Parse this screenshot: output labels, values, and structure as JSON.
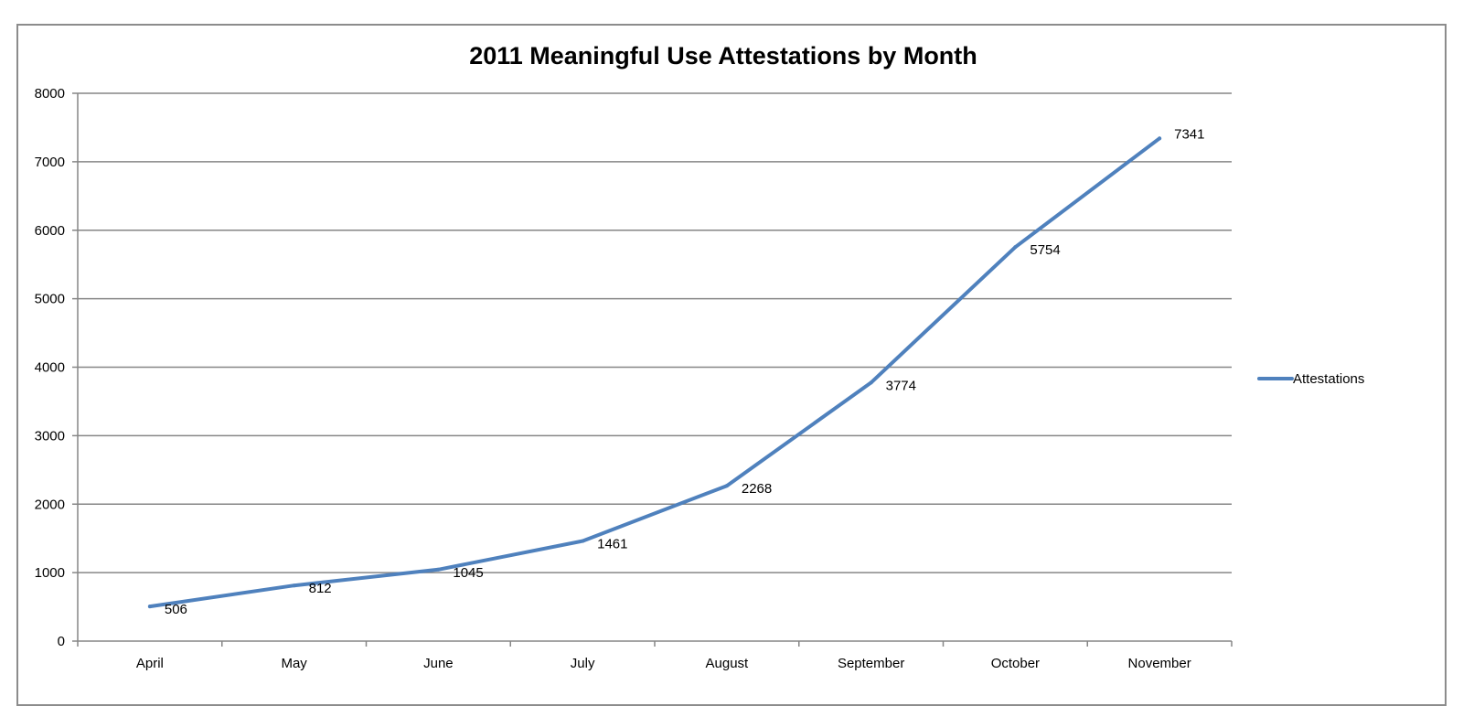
{
  "chart_data": {
    "type": "line",
    "title": "2011 Meaningful Use Attestations by Month",
    "xlabel": "",
    "ylabel": "",
    "categories": [
      "April",
      "May",
      "June",
      "July",
      "August",
      "September",
      "October",
      "November"
    ],
    "series": [
      {
        "name": "Attestations",
        "values": [
          506,
          812,
          1045,
          1461,
          2268,
          3774,
          5754,
          7341
        ],
        "color": "#4f81bd"
      }
    ],
    "ylim": [
      0,
      8000
    ],
    "yticks": [
      "0",
      "1000",
      "2000",
      "3000",
      "4000",
      "5000",
      "6000",
      "7000",
      "8000"
    ],
    "data_labels": [
      "506",
      "812",
      "1045",
      "1461",
      "2268",
      "3774",
      "5754",
      "7341"
    ],
    "grid": true,
    "legend_position": "right"
  }
}
